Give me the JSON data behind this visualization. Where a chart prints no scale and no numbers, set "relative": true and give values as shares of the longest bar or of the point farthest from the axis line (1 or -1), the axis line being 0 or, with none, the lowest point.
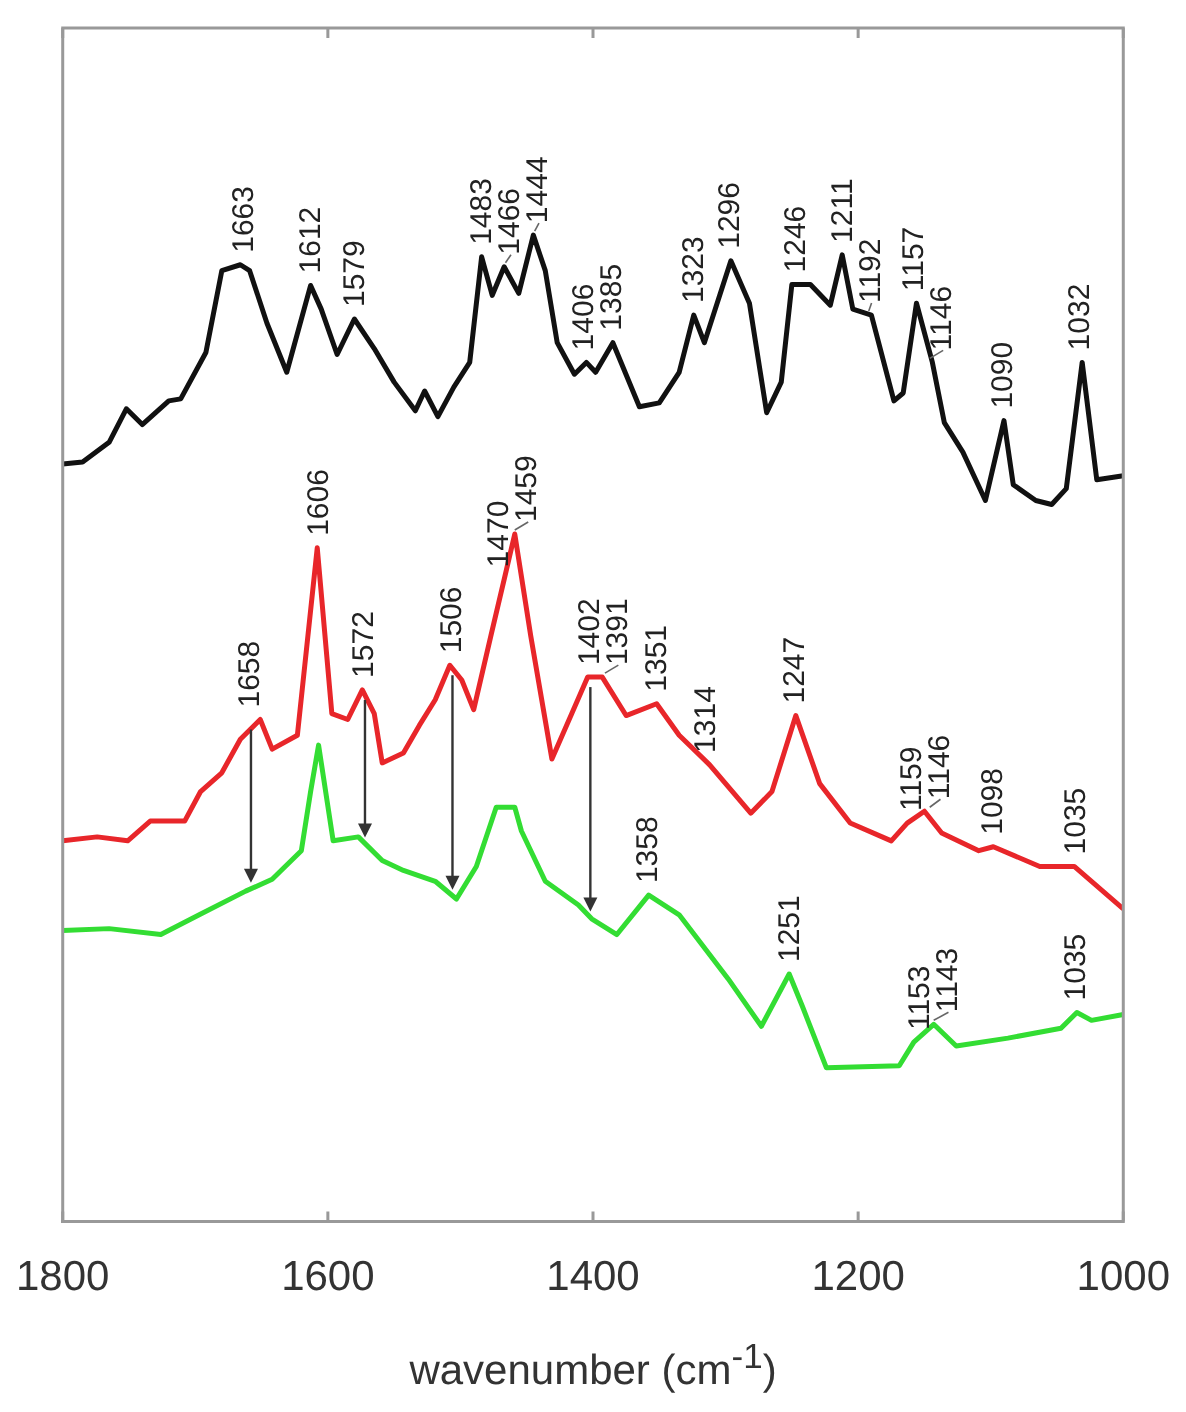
{
  "chart_data": {
    "type": "line",
    "xlabel": "wavenumber (cm$^{-1}$)",
    "xlim": [
      1800,
      1000
    ],
    "xticks": [
      1800,
      1600,
      1400,
      1200,
      1000
    ],
    "relative": true,
    "series": [
      {
        "color": "#111111",
        "x": [
          1800,
          1785,
          1765,
          1752,
          1740,
          1720,
          1711,
          1692,
          1680,
          1666,
          1659,
          1646,
          1631,
          1613,
          1605,
          1593,
          1580,
          1565,
          1550,
          1534,
          1527,
          1517,
          1505,
          1493,
          1484,
          1476,
          1467,
          1456,
          1445,
          1436,
          1427,
          1414,
          1405,
          1398,
          1385,
          1365,
          1350,
          1335,
          1324,
          1316,
          1296,
          1282,
          1269,
          1258,
          1250,
          1236,
          1221,
          1212,
          1204,
          1190,
          1173,
          1166,
          1156,
          1144,
          1135,
          1121,
          1104,
          1090,
          1083,
          1066,
          1054,
          1043,
          1031,
          1020,
          1000
        ],
        "values": [
          0.768,
          0.77,
          0.79,
          0.824,
          0.808,
          0.832,
          0.834,
          0.881,
          0.964,
          0.97,
          0.964,
          0.911,
          0.861,
          0.949,
          0.925,
          0.879,
          0.915,
          0.885,
          0.851,
          0.822,
          0.842,
          0.816,
          0.846,
          0.871,
          0.978,
          0.939,
          0.968,
          0.941,
          1.0,
          0.964,
          0.891,
          0.859,
          0.871,
          0.861,
          0.891,
          0.826,
          0.83,
          0.861,
          0.919,
          0.891,
          0.974,
          0.931,
          0.82,
          0.851,
          0.95,
          0.95,
          0.929,
          0.98,
          0.925,
          0.919,
          0.832,
          0.84,
          0.931,
          0.871,
          0.81,
          0.78,
          0.731,
          0.812,
          0.747,
          0.731,
          0.727,
          0.743,
          0.871,
          0.752,
          0.756
        ]
      },
      {
        "color": "#e8262a",
        "x": [
          1800,
          1774,
          1751,
          1734,
          1708,
          1696,
          1680,
          1666,
          1651,
          1642,
          1623,
          1608,
          1597,
          1585,
          1574,
          1565,
          1559,
          1543,
          1531,
          1519,
          1508,
          1499,
          1490,
          1477,
          1467,
          1459,
          1447,
          1431,
          1416,
          1404,
          1393,
          1375,
          1352,
          1335,
          1312,
          1281,
          1265,
          1247,
          1229,
          1206,
          1175,
          1163,
          1150,
          1137,
          1109,
          1098,
          1063,
          1037,
          1000
        ],
        "values": [
          0.386,
          0.39,
          0.386,
          0.406,
          0.406,
          0.436,
          0.455,
          0.489,
          0.509,
          0.479,
          0.493,
          0.683,
          0.515,
          0.509,
          0.539,
          0.515,
          0.465,
          0.475,
          0.503,
          0.529,
          0.564,
          0.549,
          0.519,
          0.594,
          0.651,
          0.697,
          0.594,
          0.469,
          0.515,
          0.552,
          0.552,
          0.513,
          0.525,
          0.493,
          0.463,
          0.414,
          0.436,
          0.513,
          0.444,
          0.404,
          0.386,
          0.404,
          0.416,
          0.394,
          0.376,
          0.38,
          0.36,
          0.36,
          0.317
        ]
      },
      {
        "color": "#33dd33",
        "x": [
          1800,
          1765,
          1726,
          1697,
          1662,
          1642,
          1620,
          1613,
          1607,
          1596,
          1577,
          1559,
          1543,
          1519,
          1503,
          1488,
          1473,
          1459,
          1454,
          1436,
          1411,
          1401,
          1382,
          1358,
          1335,
          1298,
          1273,
          1252,
          1242,
          1224,
          1169,
          1158,
          1143,
          1126,
          1087,
          1047,
          1035,
          1024,
          1000
        ],
        "values": [
          0.295,
          0.297,
          0.291,
          0.311,
          0.335,
          0.347,
          0.376,
          0.436,
          0.483,
          0.386,
          0.39,
          0.366,
          0.356,
          0.345,
          0.327,
          0.36,
          0.42,
          0.42,
          0.396,
          0.345,
          0.321,
          0.307,
          0.291,
          0.331,
          0.311,
          0.246,
          0.198,
          0.251,
          0.218,
          0.156,
          0.158,
          0.182,
          0.2,
          0.178,
          0.186,
          0.196,
          0.212,
          0.204,
          0.21
        ]
      }
    ],
    "annotations": [
      {
        "text": "1663",
        "x": 1663,
        "y": 0.97
      },
      {
        "text": "1612",
        "x": 1612,
        "y": 0.949
      },
      {
        "text": "1579",
        "x": 1579,
        "y": 0.915
      },
      {
        "text": "1483",
        "x": 1483,
        "y": 0.978
      },
      {
        "text": "1466",
        "x": 1466,
        "y": 0.968
      },
      {
        "text": "1444",
        "x": 1444,
        "y": 1.0
      },
      {
        "text": "1406",
        "x": 1406,
        "y": 0.871
      },
      {
        "text": "1385",
        "x": 1385,
        "y": 0.891
      },
      {
        "text": "1323",
        "x": 1323,
        "y": 0.919
      },
      {
        "text": "1296",
        "x": 1296,
        "y": 0.974
      },
      {
        "text": "1246",
        "x": 1246,
        "y": 0.95
      },
      {
        "text": "1211",
        "x": 1211,
        "y": 0.98
      },
      {
        "text": "1192",
        "x": 1192,
        "y": 0.919
      },
      {
        "text": "1157",
        "x": 1157,
        "y": 0.931
      },
      {
        "text": "1146",
        "x": 1146,
        "y": 0.871
      },
      {
        "text": "1090",
        "x": 1090,
        "y": 0.812
      },
      {
        "text": "1032",
        "x": 1032,
        "y": 0.871
      },
      {
        "text": "1658",
        "x": 1658,
        "y": 0.509
      },
      {
        "text": "1606",
        "x": 1606,
        "y": 0.683
      },
      {
        "text": "1572",
        "x": 1572,
        "y": 0.539
      },
      {
        "text": "1506",
        "x": 1506,
        "y": 0.564
      },
      {
        "text": "1470",
        "x": 1470,
        "y": 0.651
      },
      {
        "text": "1459",
        "x": 1459,
        "y": 0.697
      },
      {
        "text": "1402",
        "x": 1402,
        "y": 0.552
      },
      {
        "text": "1391",
        "x": 1391,
        "y": 0.552
      },
      {
        "text": "1351",
        "x": 1351,
        "y": 0.525
      },
      {
        "text": "1314",
        "x": 1314,
        "y": 0.463
      },
      {
        "text": "1247",
        "x": 1247,
        "y": 0.513
      },
      {
        "text": "1159",
        "x": 1159,
        "y": 0.404
      },
      {
        "text": "1146",
        "x": 1146,
        "y": 0.416
      },
      {
        "text": "1098",
        "x": 1098,
        "y": 0.38
      },
      {
        "text": "1035",
        "x": 1035,
        "y": 0.36
      },
      {
        "text": "1358",
        "x": 1358,
        "y": 0.331
      },
      {
        "text": "1251",
        "x": 1251,
        "y": 0.251
      },
      {
        "text": "1153",
        "x": 1153,
        "y": 0.182
      },
      {
        "text": "1143",
        "x": 1143,
        "y": 0.2
      },
      {
        "text": "1035",
        "x": 1035,
        "y": 0.212
      }
    ]
  }
}
